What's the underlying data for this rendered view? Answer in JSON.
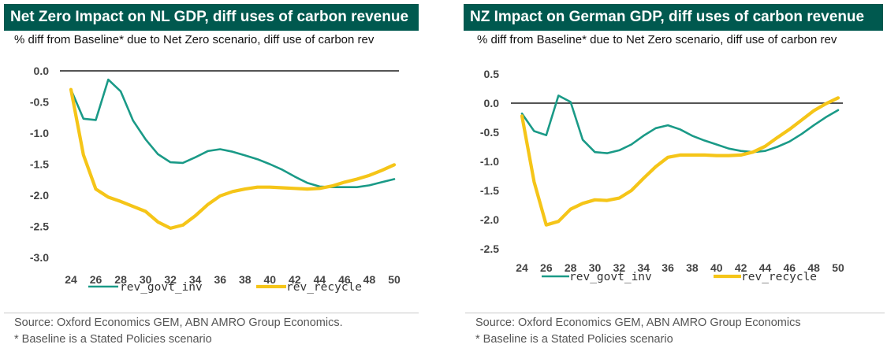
{
  "colors": {
    "header_bg": "#00594f",
    "govt": "#1a9a87",
    "recycle": "#f5c518",
    "axis": "#555555"
  },
  "chart_data": [
    {
      "type": "line",
      "title": "Net Zero Impact on NL GDP, diff uses of carbon revenue",
      "subtitle": "% diff from Baseline* due to Net Zero scenario, diff use of carbon rev",
      "x": [
        24,
        25,
        26,
        27,
        28,
        29,
        30,
        31,
        32,
        33,
        34,
        35,
        36,
        37,
        38,
        39,
        40,
        41,
        42,
        43,
        44,
        45,
        46,
        47,
        48,
        49,
        50
      ],
      "xlim": [
        24,
        50
      ],
      "xticks": [
        "24",
        "26",
        "28",
        "30",
        "32",
        "34",
        "36",
        "38",
        "40",
        "42",
        "44",
        "46",
        "48",
        "50"
      ],
      "ylim": [
        -3.0,
        0.0
      ],
      "yticks": [
        "0.0",
        "-0.5",
        "-1.0",
        "-1.5",
        "-2.0",
        "-2.5",
        "-3.0"
      ],
      "series": [
        {
          "name": "rev_govt_inv",
          "color": "#1a9a87",
          "values": [
            -0.3,
            -0.77,
            -0.79,
            -0.14,
            -0.33,
            -0.8,
            -1.1,
            -1.34,
            -1.47,
            -1.48,
            -1.39,
            -1.29,
            -1.26,
            -1.3,
            -1.36,
            -1.42,
            -1.5,
            -1.59,
            -1.7,
            -1.8,
            -1.86,
            -1.87,
            -1.87,
            -1.87,
            -1.84,
            -1.79,
            -1.74
          ]
        },
        {
          "name": "rev_recycle",
          "color": "#f5c518",
          "values": [
            -0.3,
            -1.35,
            -1.9,
            -2.03,
            -2.1,
            -2.18,
            -2.26,
            -2.43,
            -2.53,
            -2.48,
            -2.33,
            -2.15,
            -2.01,
            -1.94,
            -1.9,
            -1.87,
            -1.87,
            -1.88,
            -1.89,
            -1.9,
            -1.89,
            -1.85,
            -1.79,
            -1.74,
            -1.68,
            -1.6,
            -1.51
          ]
        }
      ],
      "source_line1": "Source: Oxford Economics GEM, ABN AMRO Group Economics.",
      "source_line2": "* Baseline is a Stated Policies scenario"
    },
    {
      "type": "line",
      "title": "NZ Impact on German GDP, diff uses of carbon revenue",
      "subtitle": "% diff from Baseline* due to Net Zero scenario, diff use of carbon rev",
      "x": [
        24,
        25,
        26,
        27,
        28,
        29,
        30,
        31,
        32,
        33,
        34,
        35,
        36,
        37,
        38,
        39,
        40,
        41,
        42,
        43,
        44,
        45,
        46,
        47,
        48,
        49,
        50
      ],
      "xlim": [
        24,
        50
      ],
      "xticks": [
        "24",
        "26",
        "28",
        "30",
        "32",
        "34",
        "36",
        "38",
        "40",
        "42",
        "44",
        "46",
        "48",
        "50"
      ],
      "ylim": [
        -2.5,
        0.5
      ],
      "yticks": [
        "0.5",
        "0.0",
        "-0.5",
        "-1.0",
        "-1.5",
        "-2.0",
        "-2.5"
      ],
      "series": [
        {
          "name": "rev_govt_inv",
          "color": "#1a9a87",
          "values": [
            -0.18,
            -0.48,
            -0.55,
            0.13,
            0.02,
            -0.63,
            -0.84,
            -0.86,
            -0.81,
            -0.71,
            -0.56,
            -0.43,
            -0.38,
            -0.45,
            -0.56,
            -0.64,
            -0.71,
            -0.78,
            -0.82,
            -0.84,
            -0.82,
            -0.75,
            -0.66,
            -0.53,
            -0.38,
            -0.24,
            -0.12
          ]
        },
        {
          "name": "rev_recycle",
          "color": "#f5c518",
          "values": [
            -0.22,
            -1.35,
            -2.09,
            -2.03,
            -1.82,
            -1.72,
            -1.66,
            -1.67,
            -1.63,
            -1.5,
            -1.29,
            -1.09,
            -0.93,
            -0.89,
            -0.89,
            -0.89,
            -0.9,
            -0.9,
            -0.89,
            -0.84,
            -0.74,
            -0.59,
            -0.45,
            -0.29,
            -0.13,
            -0.01,
            0.09
          ]
        }
      ],
      "source_line1": "Source: Oxford Economics GEM, ABN AMRO Group Economics",
      "source_line2": "* Baseline is a Stated Policies scenario"
    }
  ]
}
